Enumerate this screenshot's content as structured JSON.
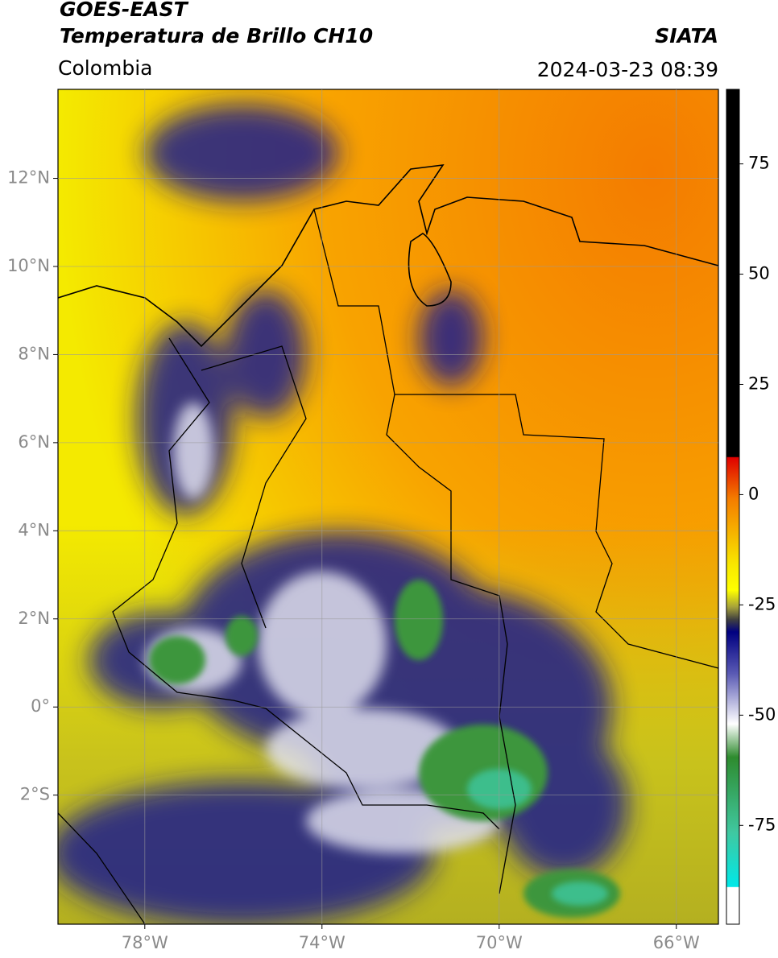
{
  "header": {
    "satellite": "GOES-EAST",
    "product": "Temperatura de Brillo CH10",
    "region": "Colombia",
    "source": "SIATA",
    "datetime": "2024-03-23 08:39"
  },
  "map": {
    "xlim": [
      -79.96,
      -65.05
    ],
    "ylim": [
      -4.93,
      14.02
    ],
    "xticks": [
      {
        "value": -78,
        "label": "78°W"
      },
      {
        "value": -74,
        "label": "74°W"
      },
      {
        "value": -70,
        "label": "70°W"
      },
      {
        "value": -66,
        "label": "66°W"
      }
    ],
    "yticks": [
      {
        "value": 12,
        "label": "12°N"
      },
      {
        "value": 10,
        "label": "10°N"
      },
      {
        "value": 8,
        "label": "8°N"
      },
      {
        "value": 6,
        "label": "6°N"
      },
      {
        "value": 4,
        "label": "4°N"
      },
      {
        "value": 2,
        "label": "2°N"
      },
      {
        "value": 0,
        "label": "0°"
      },
      {
        "value": -2,
        "label": "2°S"
      }
    ],
    "grid": true
  },
  "colorbar": {
    "lim": [
      -97.4,
      91.9
    ],
    "ticks": [
      75,
      50,
      25,
      0,
      -25,
      -50,
      -75
    ]
  }
}
